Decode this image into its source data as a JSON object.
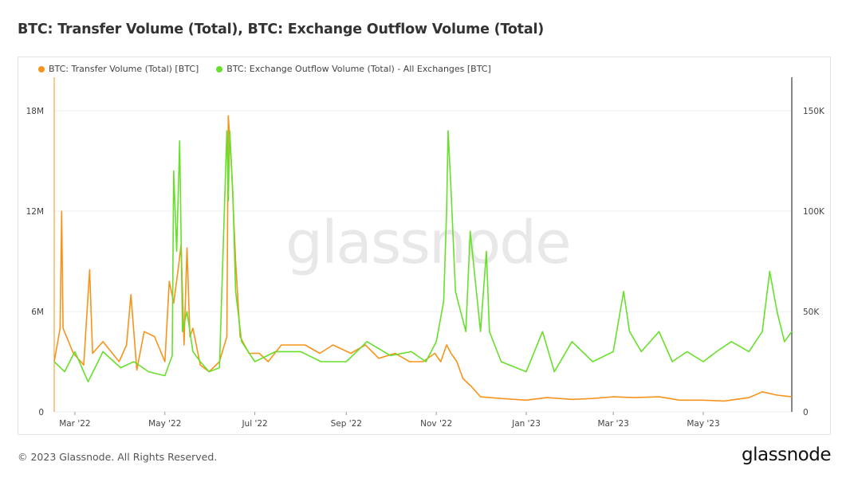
{
  "title": "BTC: Transfer Volume (Total), BTC: Exchange Outflow Volume (Total)",
  "watermark": "glassnode",
  "footer": "© 2023 Glassnode. All Rights Reserved.",
  "brand": "glassnode",
  "colors": {
    "series1": "#f7931a",
    "series2": "#66e02b",
    "grid": "#ececec"
  },
  "chart_data": {
    "type": "line",
    "x_axis": {
      "start": "2022-02-15",
      "end": "2023-06-30",
      "tick_labels": [
        "Mar '22",
        "May '22",
        "Jul '22",
        "Sep '22",
        "Nov '22",
        "Jan '23",
        "Mar '23",
        "May '23"
      ],
      "tick_dates": [
        "2022-03-01",
        "2022-05-01",
        "2022-07-01",
        "2022-09-01",
        "2022-11-01",
        "2023-01-01",
        "2023-03-01",
        "2023-05-01"
      ]
    },
    "y_left": {
      "range": [
        0,
        20000000
      ],
      "ticks": [
        0,
        6000000,
        12000000,
        18000000
      ],
      "tick_labels": [
        "0",
        "6M",
        "12M",
        "18M"
      ]
    },
    "y_right": {
      "range": [
        0,
        166667
      ],
      "ticks": [
        0,
        50000,
        100000,
        150000
      ],
      "tick_labels": [
        "0",
        "50K",
        "100K",
        "150K"
      ]
    },
    "grid": true,
    "legend_position": "top-left",
    "series": [
      {
        "name": "BTC: Transfer Volume (Total) [BTC]",
        "axis": "left",
        "points": [
          [
            "2022-02-15",
            3000000
          ],
          [
            "2022-02-19",
            5000000
          ],
          [
            "2022-02-20",
            12000000
          ],
          [
            "2022-02-21",
            5000000
          ],
          [
            "2022-02-28",
            3500000
          ],
          [
            "2022-03-07",
            2800000
          ],
          [
            "2022-03-11",
            8500000
          ],
          [
            "2022-03-13",
            3500000
          ],
          [
            "2022-03-20",
            4200000
          ],
          [
            "2022-03-31",
            3000000
          ],
          [
            "2022-04-05",
            4000000
          ],
          [
            "2022-04-08",
            7000000
          ],
          [
            "2022-04-12",
            2500000
          ],
          [
            "2022-04-17",
            4800000
          ],
          [
            "2022-04-24",
            4500000
          ],
          [
            "2022-05-01",
            3000000
          ],
          [
            "2022-05-04",
            7800000
          ],
          [
            "2022-05-07",
            6500000
          ],
          [
            "2022-05-10",
            8500000
          ],
          [
            "2022-05-12",
            10000000
          ],
          [
            "2022-05-14",
            4000000
          ],
          [
            "2022-05-16",
            9800000
          ],
          [
            "2022-05-18",
            4500000
          ],
          [
            "2022-05-20",
            5000000
          ],
          [
            "2022-05-25",
            2800000
          ],
          [
            "2022-05-31",
            2400000
          ],
          [
            "2022-06-07",
            3000000
          ],
          [
            "2022-06-12",
            4500000
          ],
          [
            "2022-06-13",
            17700000
          ],
          [
            "2022-06-15",
            15000000
          ],
          [
            "2022-06-18",
            9000000
          ],
          [
            "2022-06-21",
            4500000
          ],
          [
            "2022-06-27",
            3500000
          ],
          [
            "2022-07-04",
            3500000
          ],
          [
            "2022-07-10",
            3000000
          ],
          [
            "2022-07-19",
            4000000
          ],
          [
            "2022-07-28",
            4000000
          ],
          [
            "2022-08-04",
            4000000
          ],
          [
            "2022-08-14",
            3500000
          ],
          [
            "2022-08-23",
            4000000
          ],
          [
            "2022-09-04",
            3500000
          ],
          [
            "2022-09-14",
            4000000
          ],
          [
            "2022-09-23",
            3200000
          ],
          [
            "2022-10-04",
            3500000
          ],
          [
            "2022-10-14",
            3000000
          ],
          [
            "2022-10-23",
            3000000
          ],
          [
            "2022-10-31",
            3500000
          ],
          [
            "2022-11-04",
            3000000
          ],
          [
            "2022-11-08",
            4000000
          ],
          [
            "2022-11-11",
            3500000
          ],
          [
            "2022-11-15",
            3000000
          ],
          [
            "2022-11-19",
            2000000
          ],
          [
            "2022-11-25",
            1500000
          ],
          [
            "2022-12-01",
            900000
          ],
          [
            "2022-12-15",
            800000
          ],
          [
            "2023-01-01",
            700000
          ],
          [
            "2023-01-15",
            850000
          ],
          [
            "2023-02-01",
            750000
          ],
          [
            "2023-02-15",
            800000
          ],
          [
            "2023-03-01",
            900000
          ],
          [
            "2023-03-15",
            850000
          ],
          [
            "2023-04-01",
            900000
          ],
          [
            "2023-04-15",
            700000
          ],
          [
            "2023-05-01",
            700000
          ],
          [
            "2023-05-15",
            650000
          ],
          [
            "2023-06-01",
            850000
          ],
          [
            "2023-06-10",
            1200000
          ],
          [
            "2023-06-20",
            1000000
          ],
          [
            "2023-06-30",
            900000
          ]
        ]
      },
      {
        "name": "BTC: Exchange Outflow Volume (Total) - All Exchanges [BTC]",
        "axis": "right",
        "points": [
          [
            "2022-02-15",
            25000
          ],
          [
            "2022-02-22",
            20000
          ],
          [
            "2022-03-01",
            30000
          ],
          [
            "2022-03-10",
            15000
          ],
          [
            "2022-03-20",
            30000
          ],
          [
            "2022-04-01",
            22000
          ],
          [
            "2022-04-10",
            25000
          ],
          [
            "2022-04-20",
            20000
          ],
          [
            "2022-05-01",
            18000
          ],
          [
            "2022-05-06",
            28000
          ],
          [
            "2022-05-07",
            120000
          ],
          [
            "2022-05-09",
            80000
          ],
          [
            "2022-05-11",
            135000
          ],
          [
            "2022-05-13",
            40000
          ],
          [
            "2022-05-16",
            50000
          ],
          [
            "2022-05-20",
            30000
          ],
          [
            "2022-05-25",
            25000
          ],
          [
            "2022-05-31",
            20000
          ],
          [
            "2022-06-07",
            22000
          ],
          [
            "2022-06-12",
            140000
          ],
          [
            "2022-06-13",
            105000
          ],
          [
            "2022-06-14",
            140000
          ],
          [
            "2022-06-16",
            110000
          ],
          [
            "2022-06-18",
            60000
          ],
          [
            "2022-06-22",
            35000
          ],
          [
            "2022-07-01",
            25000
          ],
          [
            "2022-07-15",
            30000
          ],
          [
            "2022-08-01",
            30000
          ],
          [
            "2022-08-15",
            25000
          ],
          [
            "2022-09-01",
            25000
          ],
          [
            "2022-09-15",
            35000
          ],
          [
            "2022-10-01",
            28000
          ],
          [
            "2022-10-15",
            30000
          ],
          [
            "2022-10-25",
            25000
          ],
          [
            "2022-11-01",
            35000
          ],
          [
            "2022-11-06",
            55000
          ],
          [
            "2022-11-08",
            100000
          ],
          [
            "2022-11-09",
            140000
          ],
          [
            "2022-11-11",
            110000
          ],
          [
            "2022-11-14",
            60000
          ],
          [
            "2022-11-21",
            40000
          ],
          [
            "2022-11-24",
            90000
          ],
          [
            "2022-12-01",
            40000
          ],
          [
            "2022-12-05",
            80000
          ],
          [
            "2022-12-07",
            40000
          ],
          [
            "2022-12-15",
            25000
          ],
          [
            "2023-01-01",
            20000
          ],
          [
            "2023-01-12",
            40000
          ],
          [
            "2023-01-20",
            20000
          ],
          [
            "2023-02-01",
            35000
          ],
          [
            "2023-02-15",
            25000
          ],
          [
            "2023-03-01",
            30000
          ],
          [
            "2023-03-08",
            60000
          ],
          [
            "2023-03-12",
            40000
          ],
          [
            "2023-03-20",
            30000
          ],
          [
            "2023-04-01",
            40000
          ],
          [
            "2023-04-10",
            25000
          ],
          [
            "2023-04-20",
            30000
          ],
          [
            "2023-05-01",
            25000
          ],
          [
            "2023-05-10",
            30000
          ],
          [
            "2023-05-20",
            35000
          ],
          [
            "2023-06-01",
            30000
          ],
          [
            "2023-06-10",
            40000
          ],
          [
            "2023-06-15",
            70000
          ],
          [
            "2023-06-20",
            50000
          ],
          [
            "2023-06-25",
            35000
          ],
          [
            "2023-06-30",
            40000
          ]
        ]
      }
    ]
  }
}
